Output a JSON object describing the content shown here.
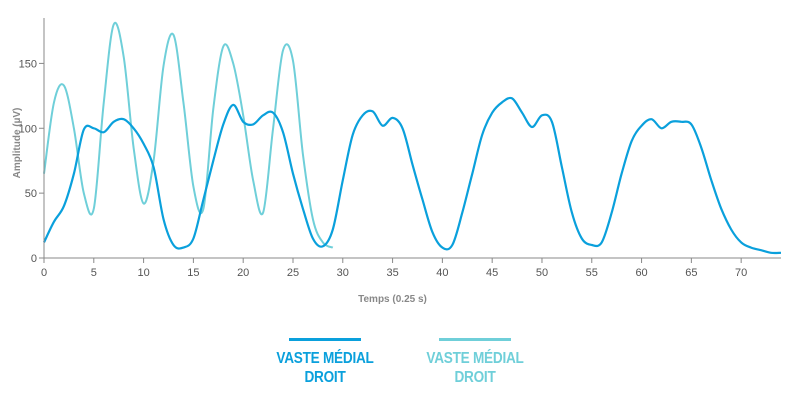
{
  "chart_data": {
    "type": "line",
    "xlabel": "Temps (0.25 s)",
    "ylabel": "Amplitude (µV)",
    "xlim": [
      0,
      74
    ],
    "ylim": [
      0,
      185
    ],
    "xticks": [
      0,
      5,
      10,
      15,
      20,
      25,
      30,
      35,
      40,
      45,
      50,
      55,
      60,
      65,
      70
    ],
    "yticks": [
      0,
      50,
      100,
      150
    ],
    "grid": false,
    "legend_position": "bottom",
    "series": [
      {
        "name": "VASTE MÉDIAL\nDROIT",
        "color": "#0aa0dc",
        "x": [
          0,
          1,
          2,
          3,
          4,
          5,
          6,
          7,
          8,
          9,
          10,
          11,
          12,
          13,
          14,
          15,
          16,
          17,
          18,
          19,
          20,
          21,
          22,
          23,
          24,
          25,
          26,
          27,
          28,
          29,
          30,
          31,
          32,
          33,
          34,
          35,
          36,
          37,
          38,
          39,
          40,
          41,
          42,
          43,
          44,
          45,
          46,
          47,
          48,
          49,
          50,
          51,
          52,
          53,
          54,
          55,
          56,
          57,
          58,
          59,
          60,
          61,
          62,
          63,
          64,
          65,
          66,
          67,
          68,
          69,
          70,
          71,
          72,
          73,
          74
        ],
        "values": [
          12,
          28,
          40,
          65,
          99,
          100,
          97,
          105,
          107,
          100,
          88,
          70,
          30,
          10,
          8,
          15,
          45,
          75,
          103,
          118,
          105,
          103,
          110,
          112,
          97,
          65,
          38,
          15,
          9,
          22,
          60,
          95,
          110,
          113,
          102,
          108,
          100,
          72,
          45,
          20,
          8,
          10,
          35,
          65,
          95,
          112,
          120,
          123,
          112,
          101,
          110,
          105,
          70,
          35,
          15,
          10,
          12,
          35,
          65,
          90,
          102,
          107,
          100,
          105,
          105,
          103,
          85,
          60,
          38,
          22,
          12,
          8,
          6,
          4,
          4
        ]
      },
      {
        "name": "VASTE MÉDIAL\nDROIT",
        "color": "#6fcfd9",
        "x": [
          0,
          1,
          2,
          3,
          4,
          5,
          6,
          7,
          8,
          9,
          10,
          11,
          12,
          13,
          14,
          15,
          16,
          17,
          18,
          19,
          20,
          21,
          22,
          23,
          24,
          25,
          26,
          27,
          28,
          29
        ],
        "values": [
          65,
          120,
          133,
          100,
          50,
          38,
          120,
          180,
          155,
          85,
          42,
          75,
          148,
          172,
          120,
          55,
          38,
          115,
          163,
          150,
          110,
          60,
          35,
          100,
          160,
          152,
          80,
          30,
          12,
          8
        ]
      }
    ]
  }
}
